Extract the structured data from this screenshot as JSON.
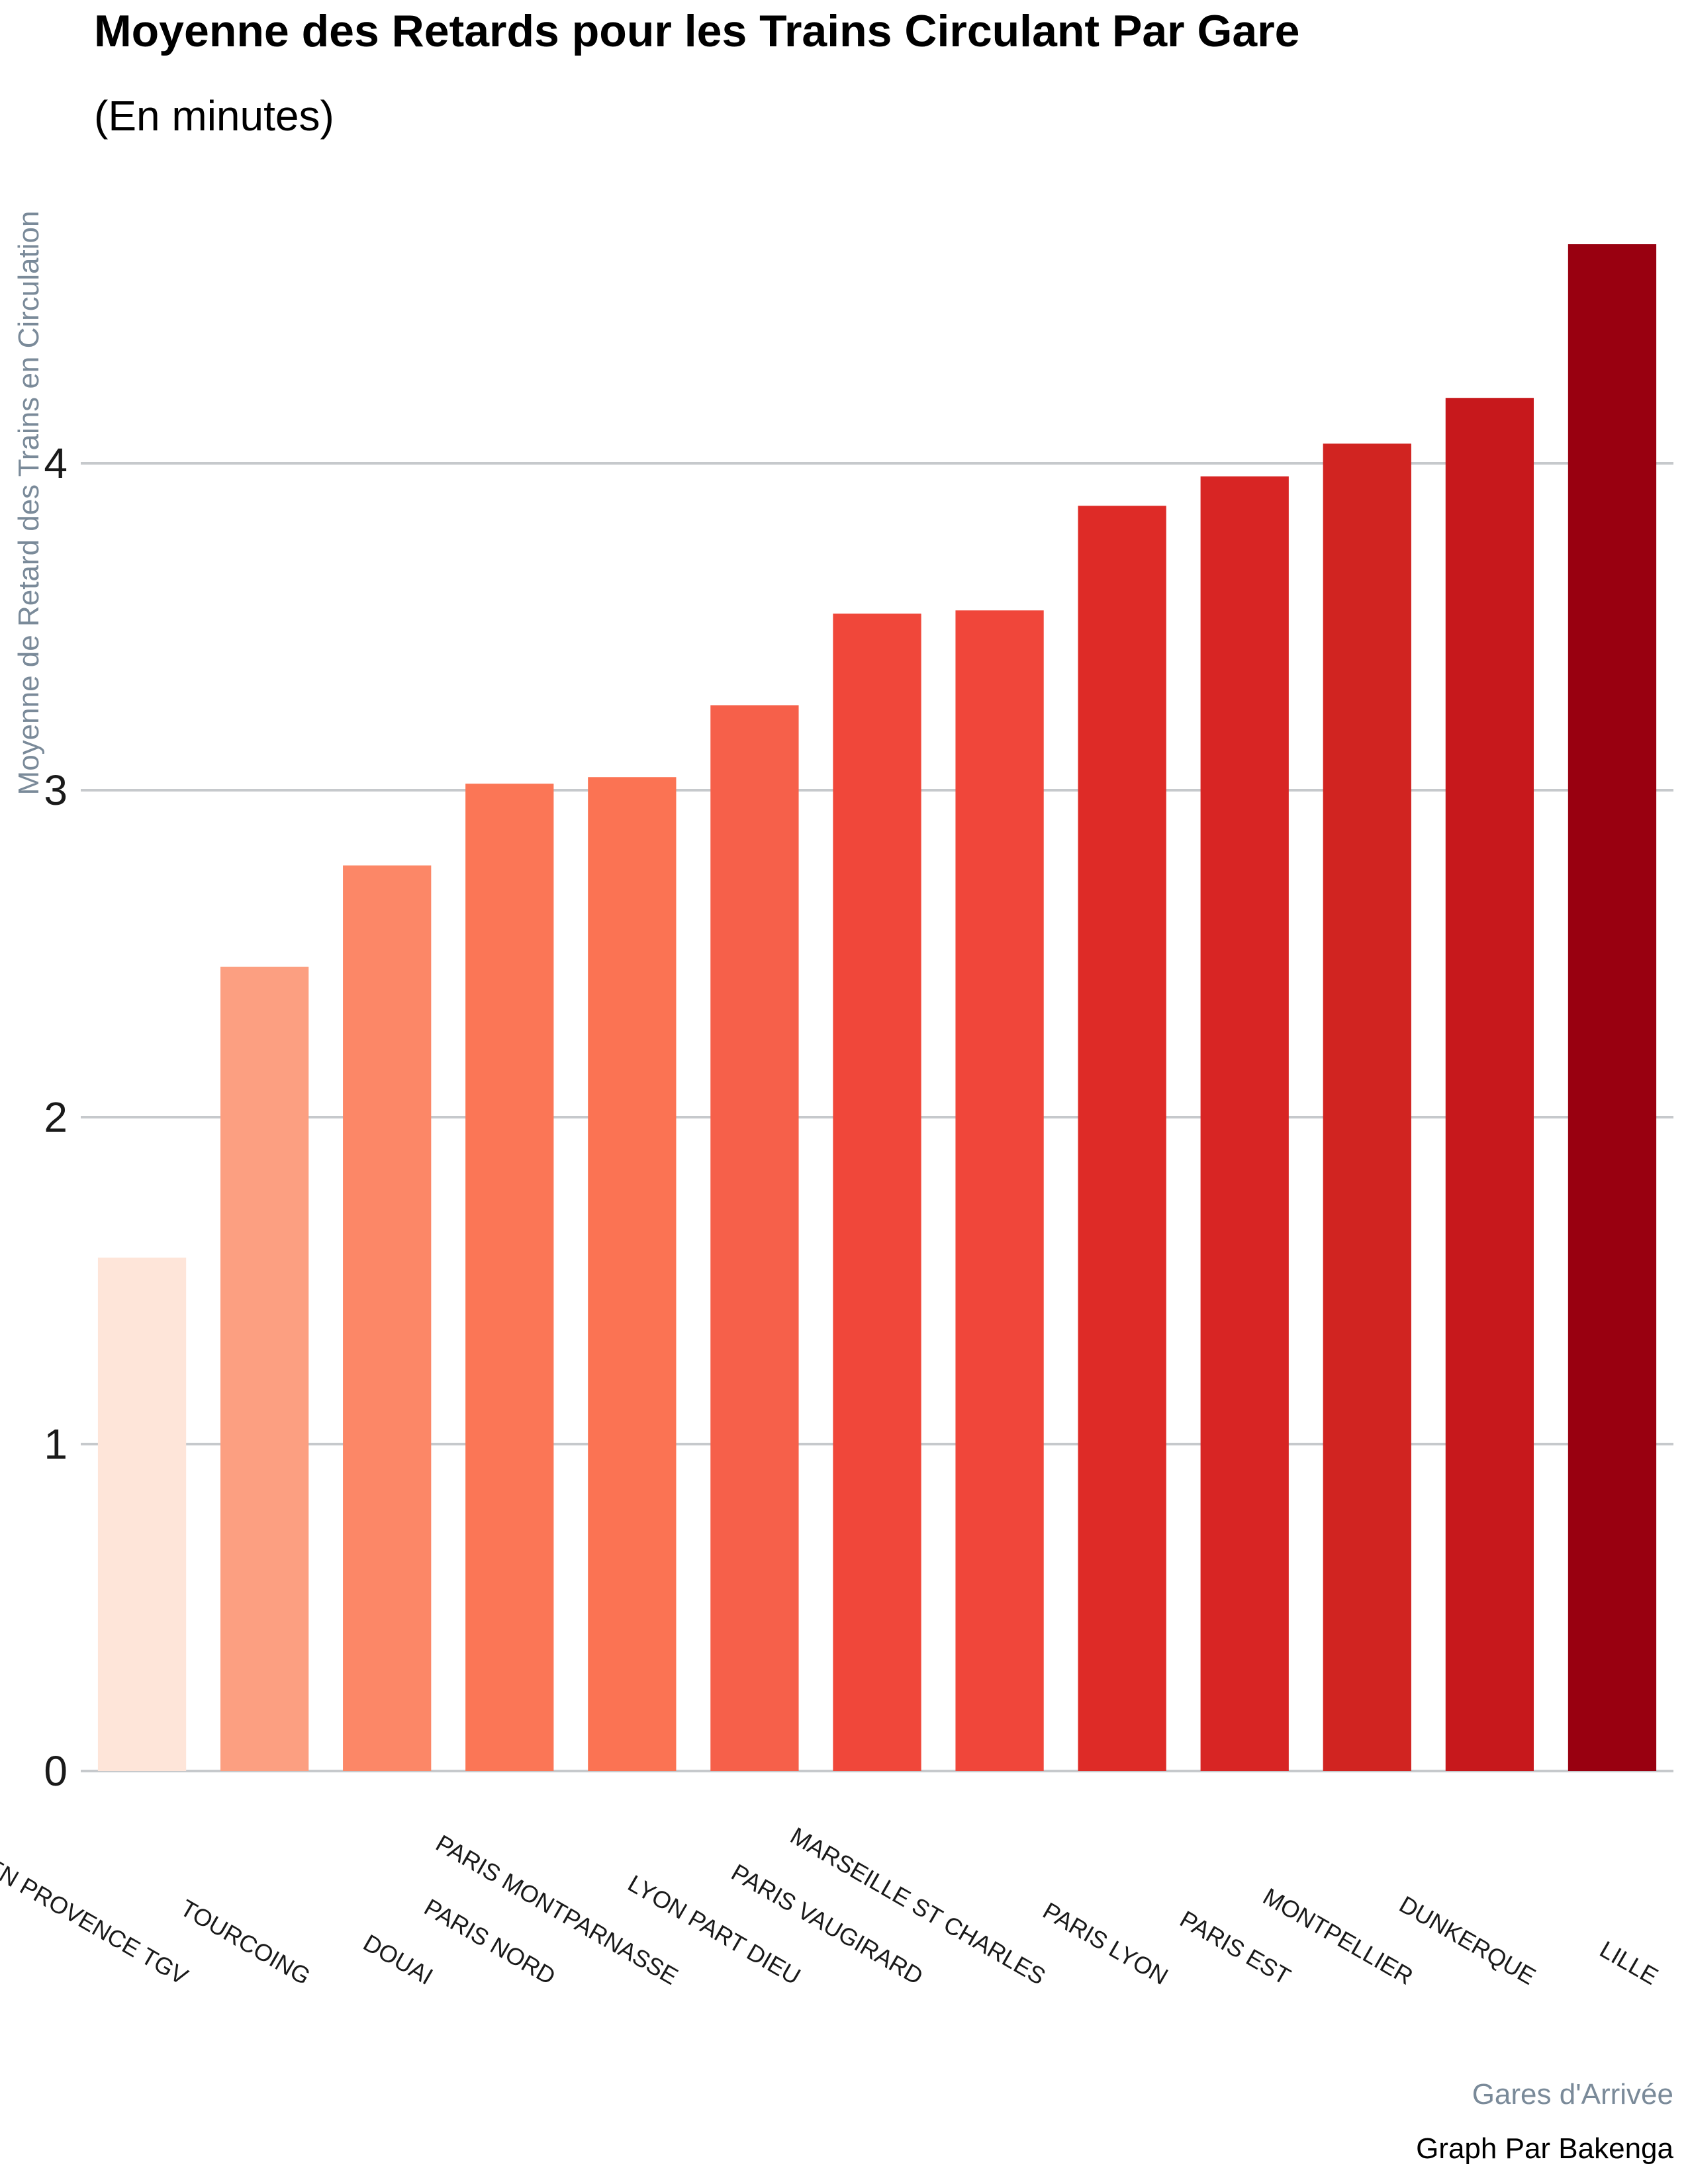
{
  "chart_data": {
    "type": "bar",
    "title": "Moyenne des Retards pour les Trains Circulant Par Gare",
    "subtitle": "(En minutes)",
    "xlabel": "Gares d'Arrivée",
    "ylabel": "Moyenne de Retard des Trains en Circulation",
    "caption": "Graph Par Bakenga",
    "categories": [
      "AIX EN PROVENCE TGV",
      "TOURCOING",
      "DOUAI",
      "PARIS NORD",
      "PARIS MONTPARNASSE",
      "LYON PART DIEU",
      "PARIS VAUGIRARD",
      "MARSEILLE ST CHARLES",
      "PARIS LYON",
      "PARIS EST",
      "MONTPELLIER",
      "DUNKERQUE",
      "LILLE"
    ],
    "values": [
      1.57,
      2.46,
      2.77,
      3.02,
      3.04,
      3.26,
      3.54,
      3.55,
      3.87,
      3.96,
      4.06,
      4.2,
      4.67
    ],
    "colors": [
      "#fee5d9",
      "#fc9f81",
      "#fc8767",
      "#fb7656",
      "#fb7353",
      "#f6604a",
      "#f0473a",
      "#f0463a",
      "#de2b27",
      "#d82524",
      "#d12421",
      "#c7181c",
      "#990010"
    ],
    "yticks": [
      0,
      1,
      2,
      3,
      4
    ],
    "ylim": [
      0,
      4.9
    ],
    "grid": "horizontal",
    "legend": "none"
  }
}
